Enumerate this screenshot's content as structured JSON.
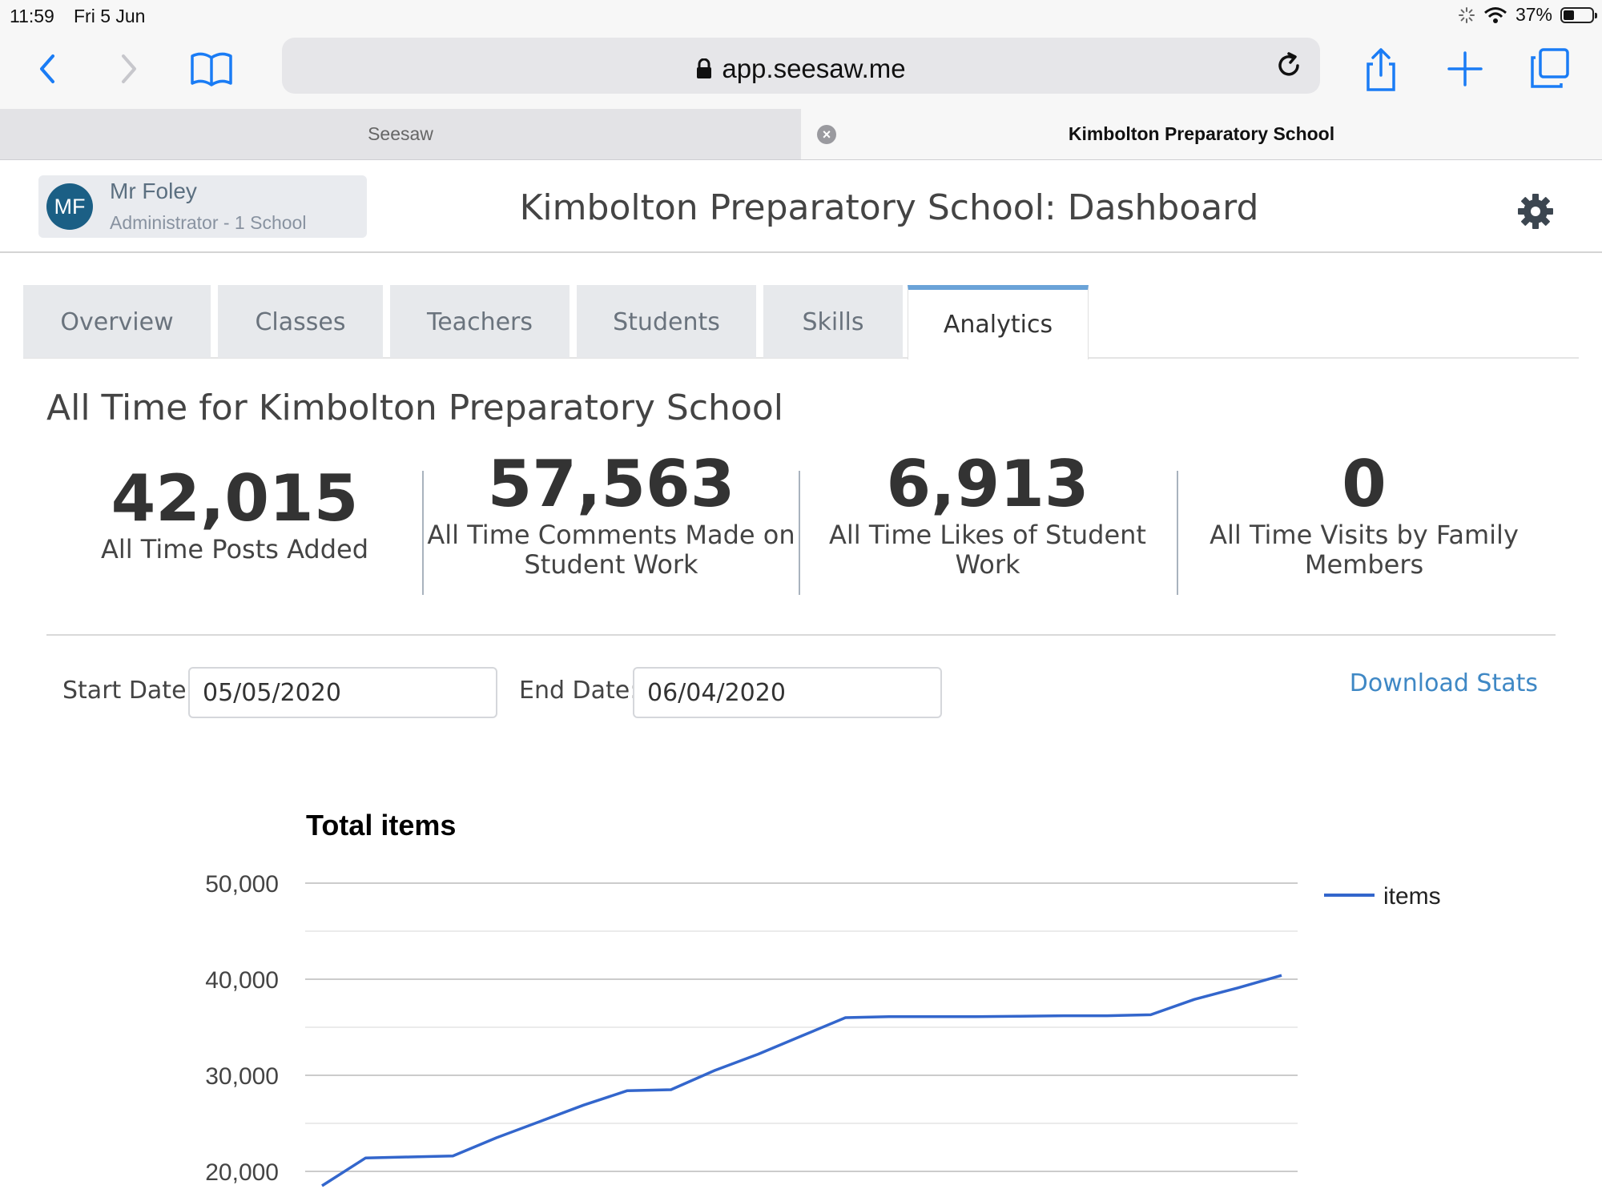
{
  "status_bar": {
    "time": "11:59",
    "date": "Fri 5 Jun",
    "battery": "37%",
    "battery_level": 0.37
  },
  "browser": {
    "url": "app.seesaw.me",
    "tabs": [
      {
        "label": "Seesaw",
        "active": false
      },
      {
        "label": "Kimbolton Preparatory School",
        "active": true
      }
    ]
  },
  "user": {
    "initials": "MF",
    "name": "Mr Foley",
    "role": "Administrator - 1 School"
  },
  "page_title": "Kimbolton Preparatory School: Dashboard",
  "nav_tabs": [
    {
      "label": "Overview"
    },
    {
      "label": "Classes"
    },
    {
      "label": "Teachers"
    },
    {
      "label": "Students"
    },
    {
      "label": "Skills"
    },
    {
      "label": "Analytics",
      "active": true
    }
  ],
  "section_title": "All Time for Kimbolton Preparatory School",
  "stats": [
    {
      "value": "42,015",
      "label": "All Time Posts Added"
    },
    {
      "value": "57,563",
      "label_lines": [
        "All Time Comments Made on",
        "Student Work"
      ]
    },
    {
      "value": "6,913",
      "label_lines": [
        "All Time Likes of Student",
        "Work"
      ]
    },
    {
      "value": "0",
      "label_lines": [
        "All Time Visits by Family",
        "Members"
      ]
    }
  ],
  "date_filter": {
    "start_label": "Start Date:",
    "start_value": "05/05/2020",
    "end_label": "End Date:",
    "end_value": "06/04/2020",
    "download_label": "Download Stats"
  },
  "colors": {
    "accent": "#3f88c5",
    "series": "#3366cc",
    "avatar": "#1b5f85",
    "active_tab": "#6aa3d8"
  },
  "chart_data": {
    "type": "line",
    "title": "Total items",
    "y_ticks": [
      "50,000",
      "40,000",
      "30,000",
      "20,000"
    ],
    "ylim": [
      18000,
      50000
    ],
    "grid": true,
    "legend_position": "right",
    "series": [
      {
        "name": "items",
        "values": [
          18500,
          21400,
          21500,
          21600,
          23500,
          25200,
          26900,
          28400,
          28500,
          30500,
          32200,
          34100,
          36000,
          36100,
          36100,
          36100,
          36150,
          36200,
          36200,
          36300,
          37900,
          39100,
          40400
        ]
      }
    ]
  }
}
